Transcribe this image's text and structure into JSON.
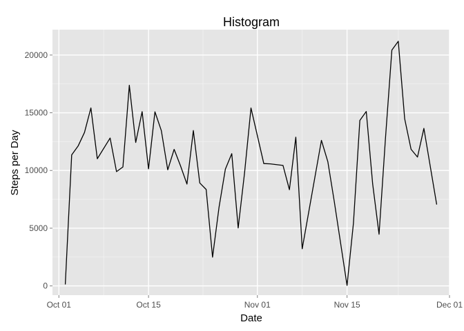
{
  "chart_data": {
    "type": "line",
    "title": "Histogram",
    "xlabel": "Date",
    "ylabel": "Steps per Day",
    "grid": true,
    "legend": "none",
    "colors": {
      "panel_background": "#e5e5e5",
      "grid_major": "#ffffff",
      "grid_minor": "#f2f2f2",
      "line": "#000000",
      "tick_text": "#4d4d4d"
    },
    "xlim": [
      "2012-09-30",
      "2012-12-01"
    ],
    "ylim": [
      -800,
      22200
    ],
    "x_ticks": [
      {
        "value": "2012-10-01",
        "label": "Oct 01"
      },
      {
        "value": "2012-10-15",
        "label": "Oct 15"
      },
      {
        "value": "2012-11-01",
        "label": "Nov 01"
      },
      {
        "value": "2012-11-15",
        "label": "Nov 15"
      },
      {
        "value": "2012-12-01",
        "label": "Dec 01"
      }
    ],
    "y_ticks": [
      {
        "value": 0,
        "label": "0"
      },
      {
        "value": 5000,
        "label": "5000"
      },
      {
        "value": 10000,
        "label": "10000"
      },
      {
        "value": 15000,
        "label": "15000"
      },
      {
        "value": 20000,
        "label": "20000"
      }
    ],
    "series": [
      {
        "x": [
          "2012-10-02",
          "2012-10-03",
          "2012-10-04",
          "2012-10-05",
          "2012-10-06",
          "2012-10-07",
          "2012-10-09",
          "2012-10-10",
          "2012-10-11",
          "2012-10-12",
          "2012-10-13",
          "2012-10-14",
          "2012-10-15",
          "2012-10-16",
          "2012-10-17",
          "2012-10-18",
          "2012-10-19",
          "2012-10-20",
          "2012-10-21",
          "2012-10-22",
          "2012-10-23",
          "2012-10-24",
          "2012-10-25",
          "2012-10-26",
          "2012-10-27",
          "2012-10-28",
          "2012-10-29",
          "2012-10-30",
          "2012-10-31",
          "2012-11-02",
          "2012-11-03",
          "2012-11-05",
          "2012-11-06",
          "2012-11-07",
          "2012-11-08",
          "2012-11-11",
          "2012-11-12",
          "2012-11-13",
          "2012-11-15",
          "2012-11-16",
          "2012-11-17",
          "2012-11-18",
          "2012-11-19",
          "2012-11-20",
          "2012-11-21",
          "2012-11-22",
          "2012-11-23",
          "2012-11-24",
          "2012-11-25",
          "2012-11-26",
          "2012-11-27",
          "2012-11-29"
        ],
        "values": [
          126,
          11352,
          12116,
          13294,
          15420,
          11015,
          12811,
          9900,
          10304,
          17382,
          12426,
          15098,
          10139,
          15084,
          13452,
          10056,
          11829,
          10395,
          8821,
          13460,
          8918,
          8355,
          2492,
          6778,
          10119,
          11458,
          5018,
          9819,
          15414,
          10600,
          10571,
          10439,
          8334,
          12883,
          3219,
          12608,
          10765,
          7336,
          41,
          5441,
          14339,
          15110,
          8841,
          4472,
          12787,
          20427,
          21194,
          14478,
          11834,
          11162,
          13646,
          7047
        ]
      }
    ]
  }
}
